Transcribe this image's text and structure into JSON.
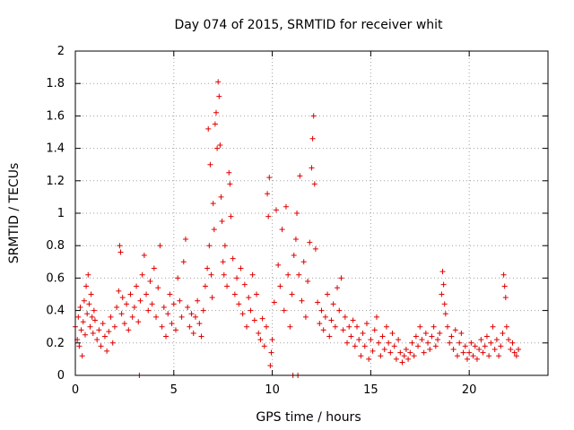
{
  "chart_data": {
    "type": "scatter",
    "title": "Day 074 of 2015, SRMTID for receiver whit",
    "xlabel": "GPS time / hours",
    "ylabel": "SRMTID / TECUs",
    "xlim": [
      0,
      24
    ],
    "ylim": [
      0,
      2
    ],
    "x_ticks": [
      0,
      5,
      10,
      15,
      20
    ],
    "x_tick_labels": [
      "0",
      "5",
      "10",
      "15",
      "20"
    ],
    "y_ticks": [
      0,
      0.2,
      0.4,
      0.6,
      0.8,
      1,
      1.2,
      1.4,
      1.6,
      1.8,
      2
    ],
    "y_tick_labels": [
      "0",
      "0.2",
      "0.4",
      "0.6",
      "0.8",
      "1",
      "1.2",
      "1.4",
      "1.6",
      "1.8",
      "2"
    ],
    "grid": true,
    "marker": "plus",
    "marker_color": "#e00000",
    "series": [
      {
        "name": "SRMTID",
        "points": [
          [
            0.0,
            0.3
          ],
          [
            0.1,
            0.22
          ],
          [
            0.15,
            0.36
          ],
          [
            0.2,
            0.18
          ],
          [
            0.25,
            0.42
          ],
          [
            0.3,
            0.28
          ],
          [
            0.35,
            0.12
          ],
          [
            0.4,
            0.33
          ],
          [
            0.45,
            0.46
          ],
          [
            0.5,
            0.25
          ],
          [
            0.55,
            0.55
          ],
          [
            0.6,
            0.38
          ],
          [
            0.65,
            0.62
          ],
          [
            0.7,
            0.44
          ],
          [
            0.75,
            0.3
          ],
          [
            0.8,
            0.5
          ],
          [
            0.85,
            0.36
          ],
          [
            0.9,
            0.26
          ],
          [
            0.95,
            0.4
          ],
          [
            1.0,
            0.34
          ],
          [
            1.1,
            0.22
          ],
          [
            1.2,
            0.28
          ],
          [
            1.3,
            0.18
          ],
          [
            1.4,
            0.32
          ],
          [
            1.5,
            0.24
          ],
          [
            1.6,
            0.15
          ],
          [
            1.7,
            0.27
          ],
          [
            1.8,
            0.36
          ],
          [
            1.9,
            0.2
          ],
          [
            2.0,
            0.3
          ],
          [
            2.1,
            0.42
          ],
          [
            2.2,
            0.52
          ],
          [
            2.25,
            0.8
          ],
          [
            2.3,
            0.76
          ],
          [
            2.35,
            0.38
          ],
          [
            2.4,
            0.48
          ],
          [
            2.5,
            0.32
          ],
          [
            2.6,
            0.44
          ],
          [
            2.7,
            0.28
          ],
          [
            2.8,
            0.5
          ],
          [
            2.9,
            0.36
          ],
          [
            3.0,
            0.42
          ],
          [
            3.1,
            0.55
          ],
          [
            3.2,
            0.33
          ],
          [
            3.25,
            0.0
          ],
          [
            3.3,
            0.46
          ],
          [
            3.4,
            0.62
          ],
          [
            3.5,
            0.74
          ],
          [
            3.6,
            0.5
          ],
          [
            3.7,
            0.4
          ],
          [
            3.8,
            0.58
          ],
          [
            3.9,
            0.44
          ],
          [
            4.0,
            0.66
          ],
          [
            4.1,
            0.36
          ],
          [
            4.2,
            0.54
          ],
          [
            4.3,
            0.8
          ],
          [
            4.4,
            0.3
          ],
          [
            4.5,
            0.42
          ],
          [
            4.6,
            0.24
          ],
          [
            4.7,
            0.38
          ],
          [
            4.8,
            0.5
          ],
          [
            4.9,
            0.32
          ],
          [
            5.0,
            0.44
          ],
          [
            5.1,
            0.28
          ],
          [
            5.2,
            0.6
          ],
          [
            5.3,
            0.46
          ],
          [
            5.4,
            0.36
          ],
          [
            5.5,
            0.7
          ],
          [
            5.6,
            0.84
          ],
          [
            5.7,
            0.42
          ],
          [
            5.8,
            0.3
          ],
          [
            5.9,
            0.38
          ],
          [
            6.0,
            0.26
          ],
          [
            6.1,
            0.36
          ],
          [
            6.2,
            0.46
          ],
          [
            6.3,
            0.32
          ],
          [
            6.4,
            0.24
          ],
          [
            6.5,
            0.4
          ],
          [
            6.6,
            0.55
          ],
          [
            6.7,
            0.66
          ],
          [
            6.75,
            1.52
          ],
          [
            6.8,
            0.8
          ],
          [
            6.85,
            1.3
          ],
          [
            6.9,
            0.62
          ],
          [
            6.95,
            0.48
          ],
          [
            7.0,
            1.06
          ],
          [
            7.05,
            0.9
          ],
          [
            7.1,
            1.55
          ],
          [
            7.15,
            1.62
          ],
          [
            7.2,
            1.4
          ],
          [
            7.25,
            1.81
          ],
          [
            7.3,
            1.72
          ],
          [
            7.35,
            1.42
          ],
          [
            7.4,
            1.1
          ],
          [
            7.45,
            0.95
          ],
          [
            7.5,
            0.7
          ],
          [
            7.55,
            0.62
          ],
          [
            7.6,
            0.8
          ],
          [
            7.7,
            0.55
          ],
          [
            7.8,
            1.25
          ],
          [
            7.85,
            1.18
          ],
          [
            7.9,
            0.98
          ],
          [
            8.0,
            0.72
          ],
          [
            8.1,
            0.5
          ],
          [
            8.2,
            0.6
          ],
          [
            8.3,
            0.44
          ],
          [
            8.4,
            0.66
          ],
          [
            8.5,
            0.38
          ],
          [
            8.6,
            0.56
          ],
          [
            8.7,
            0.3
          ],
          [
            8.8,
            0.48
          ],
          [
            8.9,
            0.4
          ],
          [
            9.0,
            0.62
          ],
          [
            9.1,
            0.34
          ],
          [
            9.2,
            0.5
          ],
          [
            9.3,
            0.26
          ],
          [
            9.4,
            0.22
          ],
          [
            9.5,
            0.35
          ],
          [
            9.6,
            0.18
          ],
          [
            9.7,
            0.3
          ],
          [
            9.75,
            1.12
          ],
          [
            9.8,
            0.98
          ],
          [
            9.85,
            1.22
          ],
          [
            9.9,
            0.06
          ],
          [
            9.95,
            0.14
          ],
          [
            10.0,
            0.22
          ],
          [
            10.1,
            0.45
          ],
          [
            10.2,
            1.02
          ],
          [
            10.3,
            0.68
          ],
          [
            10.4,
            0.55
          ],
          [
            10.5,
            0.9
          ],
          [
            10.6,
            0.4
          ],
          [
            10.7,
            1.04
          ],
          [
            10.8,
            0.62
          ],
          [
            10.9,
            0.3
          ],
          [
            11.0,
            0.5
          ],
          [
            11.05,
            0.0
          ],
          [
            11.1,
            0.74
          ],
          [
            11.2,
            0.84
          ],
          [
            11.25,
            1.0
          ],
          [
            11.3,
            0.0
          ],
          [
            11.35,
            0.62
          ],
          [
            11.4,
            1.23
          ],
          [
            11.5,
            0.46
          ],
          [
            11.6,
            0.7
          ],
          [
            11.7,
            0.36
          ],
          [
            11.8,
            0.58
          ],
          [
            11.9,
            0.82
          ],
          [
            12.0,
            1.28
          ],
          [
            12.05,
            1.46
          ],
          [
            12.1,
            1.6
          ],
          [
            12.15,
            1.18
          ],
          [
            12.2,
            0.78
          ],
          [
            12.3,
            0.45
          ],
          [
            12.4,
            0.32
          ],
          [
            12.5,
            0.4
          ],
          [
            12.6,
            0.28
          ],
          [
            12.7,
            0.36
          ],
          [
            12.8,
            0.5
          ],
          [
            12.9,
            0.24
          ],
          [
            13.0,
            0.34
          ],
          [
            13.1,
            0.44
          ],
          [
            13.2,
            0.3
          ],
          [
            13.3,
            0.54
          ],
          [
            13.4,
            0.4
          ],
          [
            13.5,
            0.6
          ],
          [
            13.6,
            0.28
          ],
          [
            13.7,
            0.36
          ],
          [
            13.8,
            0.2
          ],
          [
            13.9,
            0.3
          ],
          [
            14.0,
            0.24
          ],
          [
            14.1,
            0.34
          ],
          [
            14.2,
            0.18
          ],
          [
            14.3,
            0.3
          ],
          [
            14.4,
            0.22
          ],
          [
            14.5,
            0.12
          ],
          [
            14.6,
            0.26
          ],
          [
            14.7,
            0.18
          ],
          [
            14.8,
            0.32
          ],
          [
            14.9,
            0.1
          ],
          [
            15.0,
            0.22
          ],
          [
            15.1,
            0.15
          ],
          [
            15.2,
            0.28
          ],
          [
            15.3,
            0.36
          ],
          [
            15.4,
            0.2
          ],
          [
            15.5,
            0.12
          ],
          [
            15.6,
            0.24
          ],
          [
            15.7,
            0.16
          ],
          [
            15.8,
            0.3
          ],
          [
            15.9,
            0.2
          ],
          [
            16.0,
            0.14
          ],
          [
            16.1,
            0.26
          ],
          [
            16.2,
            0.18
          ],
          [
            16.3,
            0.1
          ],
          [
            16.4,
            0.22
          ],
          [
            16.5,
            0.14
          ],
          [
            16.6,
            0.08
          ],
          [
            16.7,
            0.12
          ],
          [
            16.8,
            0.16
          ],
          [
            16.9,
            0.1
          ],
          [
            17.0,
            0.14
          ],
          [
            17.1,
            0.2
          ],
          [
            17.2,
            0.12
          ],
          [
            17.3,
            0.24
          ],
          [
            17.4,
            0.18
          ],
          [
            17.5,
            0.3
          ],
          [
            17.6,
            0.22
          ],
          [
            17.7,
            0.14
          ],
          [
            17.8,
            0.26
          ],
          [
            17.9,
            0.2
          ],
          [
            18.0,
            0.16
          ],
          [
            18.1,
            0.24
          ],
          [
            18.2,
            0.3
          ],
          [
            18.3,
            0.18
          ],
          [
            18.4,
            0.22
          ],
          [
            18.5,
            0.26
          ],
          [
            18.6,
            0.5
          ],
          [
            18.65,
            0.64
          ],
          [
            18.7,
            0.56
          ],
          [
            18.75,
            0.44
          ],
          [
            18.8,
            0.38
          ],
          [
            18.9,
            0.3
          ],
          [
            19.0,
            0.2
          ],
          [
            19.1,
            0.24
          ],
          [
            19.2,
            0.16
          ],
          [
            19.3,
            0.28
          ],
          [
            19.4,
            0.12
          ],
          [
            19.5,
            0.2
          ],
          [
            19.6,
            0.26
          ],
          [
            19.7,
            0.14
          ],
          [
            19.8,
            0.18
          ],
          [
            19.9,
            0.1
          ],
          [
            20.0,
            0.14
          ],
          [
            20.1,
            0.2
          ],
          [
            20.2,
            0.12
          ],
          [
            20.3,
            0.18
          ],
          [
            20.4,
            0.1
          ],
          [
            20.5,
            0.16
          ],
          [
            20.6,
            0.22
          ],
          [
            20.7,
            0.14
          ],
          [
            20.8,
            0.18
          ],
          [
            20.9,
            0.24
          ],
          [
            21.0,
            0.12
          ],
          [
            21.1,
            0.2
          ],
          [
            21.2,
            0.3
          ],
          [
            21.3,
            0.16
          ],
          [
            21.4,
            0.22
          ],
          [
            21.5,
            0.12
          ],
          [
            21.6,
            0.18
          ],
          [
            21.7,
            0.26
          ],
          [
            21.75,
            0.62
          ],
          [
            21.8,
            0.55
          ],
          [
            21.85,
            0.48
          ],
          [
            21.9,
            0.3
          ],
          [
            22.0,
            0.22
          ],
          [
            22.1,
            0.16
          ],
          [
            22.2,
            0.2
          ],
          [
            22.3,
            0.14
          ],
          [
            22.4,
            0.12
          ],
          [
            22.5,
            0.16
          ]
        ]
      }
    ]
  }
}
